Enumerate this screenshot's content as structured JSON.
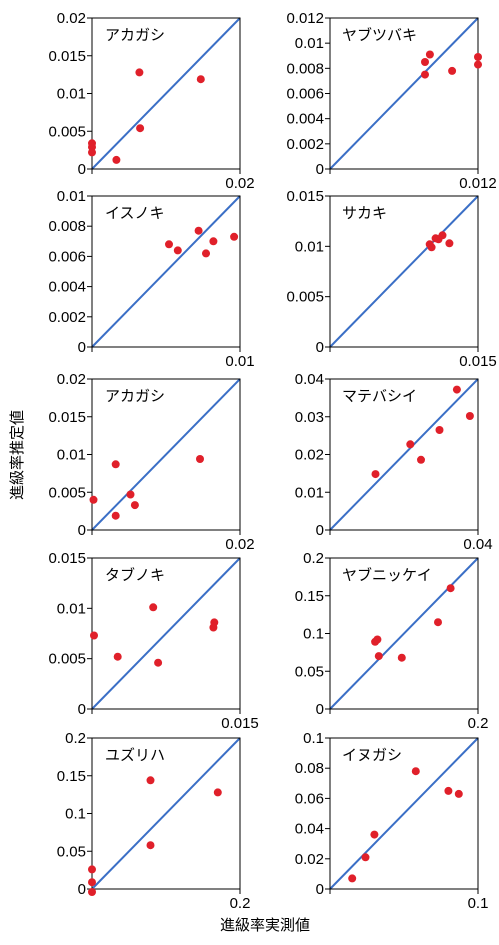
{
  "figure": {
    "xlabel": "進級率実測値",
    "ylabel": "進級率推定値"
  },
  "colors": {
    "point": "#e0202a",
    "diagonal": "#3b6fc6",
    "axis": "#000000"
  },
  "chart_data": [
    {
      "type": "scatter",
      "title": "アカガシ",
      "max": 0.02,
      "xlim": [
        0,
        0.02
      ],
      "ylim": [
        0,
        0.02
      ],
      "yticks": [
        "0",
        "0.005",
        "0.01",
        "0.015",
        "0.02"
      ],
      "xtick_label": "0.02",
      "points": [
        [
          0.0,
          0.0034
        ],
        [
          0.0,
          0.0029
        ],
        [
          0.0,
          0.0022
        ],
        [
          0.0033,
          0.0012
        ],
        [
          0.0065,
          0.0054
        ],
        [
          0.0064,
          0.0128
        ],
        [
          0.0147,
          0.0119
        ]
      ]
    },
    {
      "type": "scatter",
      "title": "ヤブツバキ",
      "max": 0.012,
      "xlim": [
        0,
        0.012
      ],
      "ylim": [
        0,
        0.012
      ],
      "yticks": [
        "0",
        "0.002",
        "0.004",
        "0.006",
        "0.008",
        "0.01",
        "0.012"
      ],
      "xtick_label": "0.012",
      "points": [
        [
          0.0077,
          0.0085
        ],
        [
          0.0077,
          0.0075
        ],
        [
          0.0081,
          0.0091
        ],
        [
          0.0099,
          0.0078
        ],
        [
          0.012,
          0.0089
        ],
        [
          0.012,
          0.0083
        ]
      ]
    },
    {
      "type": "scatter",
      "title": "イスノキ",
      "max": 0.01,
      "xlim": [
        0,
        0.01
      ],
      "ylim": [
        0,
        0.01
      ],
      "yticks": [
        "0",
        "0.002",
        "0.004",
        "0.006",
        "0.008",
        "0.01"
      ],
      "xtick_label": "0.01",
      "points": [
        [
          0.0052,
          0.0068
        ],
        [
          0.0058,
          0.0064
        ],
        [
          0.0072,
          0.0077
        ],
        [
          0.0077,
          0.0062
        ],
        [
          0.0082,
          0.007
        ],
        [
          0.0096,
          0.0073
        ]
      ]
    },
    {
      "type": "scatter",
      "title": "サカキ",
      "max": 0.015,
      "xlim": [
        0,
        0.015
      ],
      "ylim": [
        0,
        0.015
      ],
      "yticks": [
        "0",
        "0.005",
        "0.01",
        "0.015"
      ],
      "xtick_label": "0.015",
      "points": [
        [
          0.0101,
          0.0102
        ],
        [
          0.0103,
          0.0099
        ],
        [
          0.0107,
          0.0108
        ],
        [
          0.011,
          0.0107
        ],
        [
          0.0114,
          0.0111
        ],
        [
          0.0121,
          0.0103
        ]
      ]
    },
    {
      "type": "scatter",
      "title": "アカガシ",
      "max": 0.02,
      "xlim": [
        0,
        0.02
      ],
      "ylim": [
        0,
        0.02
      ],
      "yticks": [
        "0",
        "0.005",
        "0.01",
        "0.015",
        "0.02"
      ],
      "xtick_label": "0.02",
      "points": [
        [
          0.0002,
          0.004
        ],
        [
          0.0032,
          0.0087
        ],
        [
          0.0032,
          0.0019
        ],
        [
          0.0052,
          0.0047
        ],
        [
          0.0058,
          0.0033
        ],
        [
          0.0146,
          0.0094
        ]
      ]
    },
    {
      "type": "scatter",
      "title": "マテバシイ",
      "max": 0.04,
      "xlim": [
        0,
        0.04
      ],
      "ylim": [
        0,
        0.04
      ],
      "yticks": [
        "0",
        "0.01",
        "0.02",
        "0.03",
        "0.04"
      ],
      "xtick_label": "0.04",
      "points": [
        [
          0.0123,
          0.0148
        ],
        [
          0.0217,
          0.0227
        ],
        [
          0.0246,
          0.0186
        ],
        [
          0.0296,
          0.0265
        ],
        [
          0.0343,
          0.0372
        ],
        [
          0.0378,
          0.0302
        ]
      ]
    },
    {
      "type": "scatter",
      "title": "タブノキ",
      "max": 0.015,
      "xlim": [
        0,
        0.015
      ],
      "ylim": [
        0,
        0.015
      ],
      "yticks": [
        "0",
        "0.005",
        "0.01",
        "0.015"
      ],
      "xtick_label": "0.015",
      "points": [
        [
          0.0002,
          0.0073
        ],
        [
          0.0026,
          0.0052
        ],
        [
          0.0062,
          0.0101
        ],
        [
          0.0067,
          0.0046
        ],
        [
          0.0123,
          0.0081
        ],
        [
          0.0124,
          0.0086
        ]
      ]
    },
    {
      "type": "scatter",
      "title": "ヤブニッケイ",
      "max": 0.2,
      "xlim": [
        0,
        0.2
      ],
      "ylim": [
        0,
        0.2
      ],
      "yticks": [
        "0",
        "0.05",
        "0.1",
        "0.15",
        "0.2"
      ],
      "xtick_label": "0.2",
      "points": [
        [
          0.061,
          0.089
        ],
        [
          0.064,
          0.092
        ],
        [
          0.066,
          0.07
        ],
        [
          0.097,
          0.068
        ],
        [
          0.146,
          0.115
        ],
        [
          0.163,
          0.16
        ]
      ]
    },
    {
      "type": "scatter",
      "title": "ユズリハ",
      "max": 0.2,
      "xlim": [
        0,
        0.2
      ],
      "ylim": [
        0,
        0.2
      ],
      "yticks": [
        "0",
        "0.05",
        "0.1",
        "0.15",
        "0.2"
      ],
      "xtick_label": "0.2",
      "points": [
        [
          0.0,
          0.026
        ],
        [
          0.0,
          0.009
        ],
        [
          0.0,
          -0.004
        ],
        [
          0.079,
          0.058
        ],
        [
          0.079,
          0.144
        ],
        [
          0.17,
          0.128
        ]
      ]
    },
    {
      "type": "scatter",
      "title": "イヌガシ",
      "max": 0.1,
      "xlim": [
        0,
        0.1
      ],
      "ylim": [
        0,
        0.1
      ],
      "yticks": [
        "0",
        "0.02",
        "0.04",
        "0.06",
        "0.08",
        "0.1"
      ],
      "xtick_label": "0.1",
      "points": [
        [
          0.015,
          0.007
        ],
        [
          0.024,
          0.021
        ],
        [
          0.03,
          0.036
        ],
        [
          0.058,
          0.078
        ],
        [
          0.08,
          0.065
        ],
        [
          0.087,
          0.063
        ]
      ]
    }
  ]
}
